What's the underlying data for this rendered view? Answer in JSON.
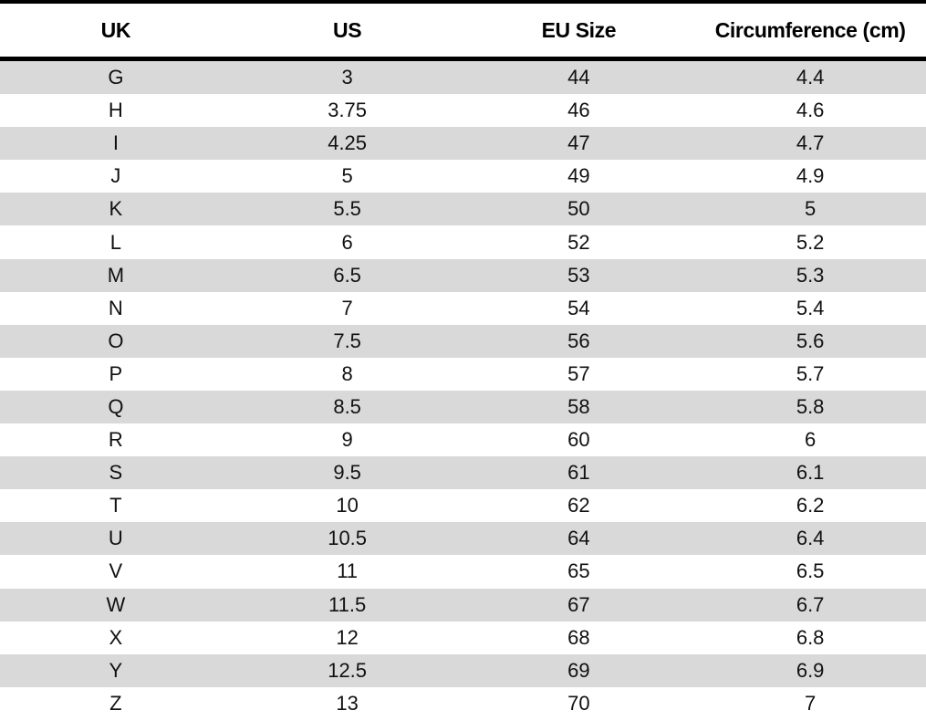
{
  "table": {
    "columns": [
      "UK",
      "US",
      "EU Size",
      "Circumference (cm)"
    ],
    "rows": [
      [
        "G",
        "3",
        "44",
        "4.4"
      ],
      [
        "H",
        "3.75",
        "46",
        "4.6"
      ],
      [
        "I",
        "4.25",
        "47",
        "4.7"
      ],
      [
        "J",
        "5",
        "49",
        "4.9"
      ],
      [
        "K",
        "5.5",
        "50",
        "5"
      ],
      [
        "L",
        "6",
        "52",
        "5.2"
      ],
      [
        "M",
        "6.5",
        "53",
        "5.3"
      ],
      [
        "N",
        "7",
        "54",
        "5.4"
      ],
      [
        "O",
        "7.5",
        "56",
        "5.6"
      ],
      [
        "P",
        "8",
        "57",
        "5.7"
      ],
      [
        "Q",
        "8.5",
        "58",
        "5.8"
      ],
      [
        "R",
        "9",
        "60",
        "6"
      ],
      [
        "S",
        "9.5",
        "61",
        "6.1"
      ],
      [
        "T",
        "10",
        "62",
        "6.2"
      ],
      [
        "U",
        "10.5",
        "64",
        "6.4"
      ],
      [
        "V",
        "11",
        "65",
        "6.5"
      ],
      [
        "W",
        "11.5",
        "67",
        "6.7"
      ],
      [
        "X",
        "12",
        "68",
        "6.8"
      ],
      [
        "Y",
        "12.5",
        "69",
        "6.9"
      ],
      [
        "Z",
        "13",
        "70",
        "7"
      ]
    ]
  },
  "colors": {
    "stripe": "#d9d9d9",
    "row_alt": "#ffffff",
    "border": "#000000",
    "text": "#111111"
  }
}
